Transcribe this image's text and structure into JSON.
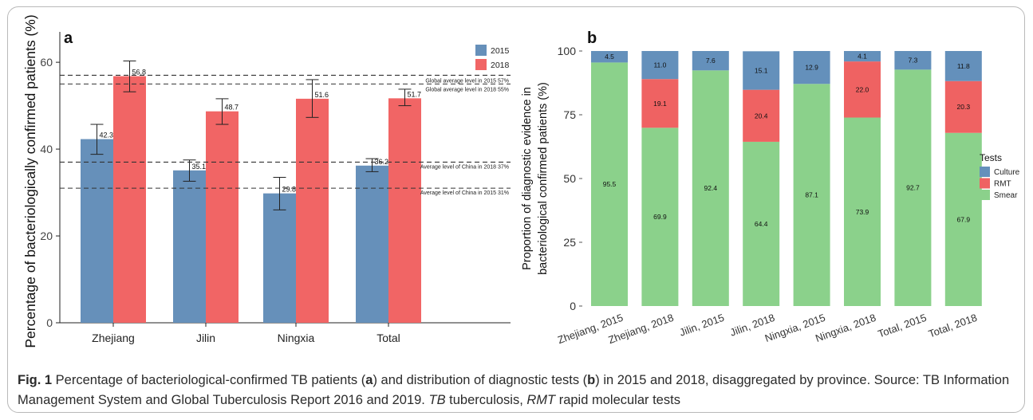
{
  "chart_data": [
    {
      "panel": "a",
      "type": "bar",
      "ylabel": "Percentage of bacteriologically confirmed patients (%)",
      "xlabel": "",
      "categories": [
        "Zhejiang",
        "Jilin",
        "Ningxia",
        "Total"
      ],
      "ylim": [
        0,
        67
      ],
      "yticks": [
        0,
        20,
        40,
        60
      ],
      "legend_position": "top-right",
      "series": [
        {
          "name": "2015",
          "color": "#6690ba",
          "values": [
            42.3,
            35.1,
            29.8,
            36.2
          ],
          "labels": [
            "42.3",
            "35.1",
            "29.8",
            "36.2"
          ],
          "error_low": [
            38.8,
            32.6,
            26.0,
            34.8
          ],
          "error_high": [
            45.7,
            37.5,
            33.5,
            37.8
          ]
        },
        {
          "name": "2018",
          "color": "#f16565",
          "values": [
            56.8,
            48.7,
            51.6,
            51.7
          ],
          "labels": [
            "56.8",
            "48.7",
            "51.6",
            "51.7"
          ],
          "error_low": [
            53.2,
            45.7,
            47.3,
            50.0
          ],
          "error_high": [
            60.3,
            51.6,
            56.0,
            53.8
          ]
        }
      ],
      "reference_lines": [
        {
          "value": 57,
          "label": "Global average level in 2015 57%"
        },
        {
          "value": 55,
          "label": "Global average level in 2018 55%"
        },
        {
          "value": 37,
          "label": "Average level of China in 2018 37%"
        },
        {
          "value": 31,
          "label": "Average level of China in 2015 31%"
        }
      ],
      "grid": false
    },
    {
      "panel": "b",
      "type": "bar",
      "stacked": true,
      "ylabel": "Proportion of diagnostic evidence in bacteriological confirmed patients (%)",
      "xlabel": "",
      "categories": [
        "Zhejiang, 2015",
        "Zhejiang, 2018",
        "Jilin, 2015",
        "Jilin, 2018",
        "Ningxia, 2015",
        "Ningxia, 2018",
        "Total, 2015",
        "Total, 2018"
      ],
      "ylim": [
        0,
        100
      ],
      "yticks": [
        0,
        25,
        50,
        75,
        100
      ],
      "legend_title": "Tests",
      "legend_position": "right",
      "series": [
        {
          "name": "Smear",
          "color": "#8bd18b",
          "values": [
            95.5,
            69.9,
            92.4,
            64.4,
            87.1,
            73.9,
            92.7,
            67.9
          ]
        },
        {
          "name": "RMT",
          "color": "#ef6262",
          "values": [
            0,
            19.1,
            0,
            20.4,
            0,
            22.0,
            0,
            20.3
          ]
        },
        {
          "name": "Culture",
          "color": "#6490bb",
          "values": [
            4.5,
            11.0,
            7.6,
            15.1,
            12.9,
            4.1,
            7.3,
            11.8
          ]
        }
      ],
      "legend_order": [
        "Culture",
        "RMT",
        "Smear"
      ],
      "grid": false
    }
  ],
  "caption": {
    "fig": "Fig. 1",
    "parts": [
      "  Percentage of bacteriological-confirmed TB patients (",
      "a",
      ") and distribution of diagnostic tests (",
      "b",
      ") in 2015 and 2018, disaggregated by province. Source: TB Information Management System and Global Tuberculosis Report 2016 and 2019. ",
      "TB",
      " tuberculosis, ",
      "RMT",
      " rapid molecular tests"
    ]
  }
}
